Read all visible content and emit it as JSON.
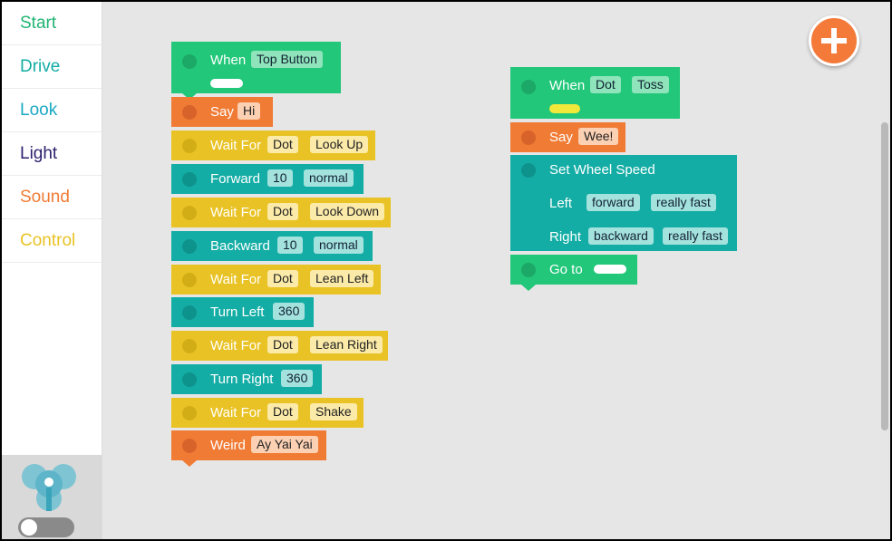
{
  "sidebar": {
    "categories": [
      "Start",
      "Drive",
      "Look",
      "Light",
      "Sound",
      "Control"
    ]
  },
  "colors": {
    "start": "#22c77a",
    "drive": "#14ada5",
    "look": "#1aa9c3",
    "light": "#2b1f6e",
    "sound": "#f07b35",
    "control": "#e9c325"
  },
  "script1": {
    "hat": {
      "label": "When",
      "trigger": "Top Button"
    },
    "rows": [
      {
        "label": "Say",
        "args": [
          "Hi"
        ]
      },
      {
        "label": "Wait For",
        "args": [
          "Dot",
          "Look Up"
        ]
      },
      {
        "label": "Forward",
        "args": [
          "10",
          "normal"
        ]
      },
      {
        "label": "Wait For",
        "args": [
          "Dot",
          "Look Down"
        ]
      },
      {
        "label": "Backward",
        "args": [
          "10",
          "normal"
        ]
      },
      {
        "label": "Wait For",
        "args": [
          "Dot",
          "Lean Left"
        ]
      },
      {
        "label": "Turn Left",
        "args": [
          "360"
        ]
      },
      {
        "label": "Wait For",
        "args": [
          "Dot",
          "Lean Right"
        ]
      },
      {
        "label": "Turn Right",
        "args": [
          "360"
        ]
      },
      {
        "label": "Wait For",
        "args": [
          "Dot",
          "Shake"
        ]
      },
      {
        "label": "Weird",
        "args": [
          "Ay Yai Yai"
        ]
      }
    ]
  },
  "script2": {
    "hat": {
      "label": "When",
      "args": [
        "Dot",
        "Toss"
      ]
    },
    "say": {
      "label": "Say",
      "arg": "Wee!"
    },
    "wheel": {
      "title": "Set Wheel Speed",
      "left_label": "Left",
      "left_dir": "forward",
      "left_speed": "really fast",
      "right_label": "Right",
      "right_dir": "backward",
      "right_speed": "really fast"
    },
    "goto": {
      "label": "Go to"
    }
  }
}
